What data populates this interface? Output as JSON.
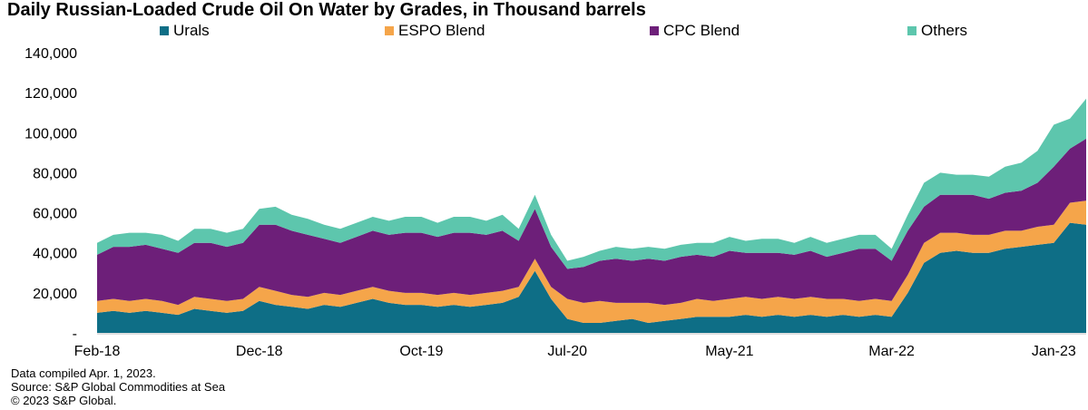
{
  "chart_data": {
    "type": "area",
    "stacked": true,
    "title": "Daily Russian-Loaded Crude Oil On Water by Grades, in Thousand barrels",
    "xlabel": "",
    "ylabel": "",
    "ylim": [
      0,
      140000
    ],
    "y_ticks": [
      "-",
      "20,000",
      "40,000",
      "60,000",
      "80,000",
      "100,000",
      "120,000",
      "140,000"
    ],
    "x_ticks": [
      "Feb-18",
      "Dec-18",
      "Oct-19",
      "Jul-20",
      "May-21",
      "Mar-22",
      "Jan-23"
    ],
    "grid": false,
    "legend_position": "top",
    "x": [
      "2018-02",
      "2018-03",
      "2018-04",
      "2018-05",
      "2018-06",
      "2018-07",
      "2018-08",
      "2018-09",
      "2018-10",
      "2018-11",
      "2018-12",
      "2019-01",
      "2019-02",
      "2019-03",
      "2019-04",
      "2019-05",
      "2019-06",
      "2019-07",
      "2019-08",
      "2019-09",
      "2019-10",
      "2019-11",
      "2019-12",
      "2020-01",
      "2020-02",
      "2020-03",
      "2020-04",
      "2020-05",
      "2020-06",
      "2020-07",
      "2020-08",
      "2020-09",
      "2020-10",
      "2020-11",
      "2020-12",
      "2021-01",
      "2021-02",
      "2021-03",
      "2021-04",
      "2021-05",
      "2021-06",
      "2021-07",
      "2021-08",
      "2021-09",
      "2021-10",
      "2021-11",
      "2021-12",
      "2022-01",
      "2022-02",
      "2022-03",
      "2022-04",
      "2022-05",
      "2022-06",
      "2022-07",
      "2022-08",
      "2022-09",
      "2022-10",
      "2022-11",
      "2022-12",
      "2023-01",
      "2023-02",
      "2023-03"
    ],
    "series": [
      {
        "name": "Urals",
        "color": "#0e6e86",
        "values": [
          10000,
          11000,
          10000,
          11000,
          10000,
          9000,
          12000,
          11000,
          10000,
          11000,
          16000,
          14000,
          13000,
          12000,
          14000,
          13000,
          15000,
          17000,
          15000,
          14000,
          14000,
          13000,
          14000,
          13000,
          14000,
          15000,
          18000,
          31000,
          17000,
          7000,
          5000,
          5000,
          6000,
          7000,
          5000,
          6000,
          7000,
          8000,
          8000,
          8000,
          9000,
          8000,
          9000,
          8000,
          9000,
          8000,
          9000,
          8000,
          9000,
          8000,
          20000,
          35000,
          40000,
          41000,
          40000,
          40000,
          42000,
          43000,
          44000,
          45000,
          55000,
          54000
        ]
      },
      {
        "name": "ESPO Blend",
        "color": "#f5a54a",
        "values": [
          6000,
          6000,
          6000,
          6000,
          6000,
          5000,
          6000,
          6000,
          6000,
          6000,
          7000,
          7000,
          6000,
          6000,
          6000,
          6000,
          6000,
          6000,
          6000,
          6000,
          6000,
          6000,
          6000,
          6000,
          6000,
          6000,
          5000,
          6000,
          6000,
          10000,
          10000,
          11000,
          9000,
          8000,
          10000,
          8000,
          8000,
          9000,
          8000,
          9000,
          9000,
          9000,
          9000,
          9000,
          9000,
          9000,
          8000,
          8000,
          8000,
          8000,
          9000,
          10000,
          10000,
          9000,
          9000,
          9000,
          9000,
          8000,
          9000,
          9000,
          10000,
          12000
        ]
      },
      {
        "name": "CPC Blend",
        "color": "#6d1f79",
        "values": [
          23000,
          26000,
          27000,
          27000,
          26000,
          26000,
          27000,
          28000,
          27000,
          28000,
          31000,
          33000,
          32000,
          31000,
          27000,
          26000,
          27000,
          28000,
          28000,
          30000,
          30000,
          29000,
          30000,
          31000,
          29000,
          30000,
          23000,
          25000,
          20000,
          15000,
          18000,
          20000,
          22000,
          21000,
          22000,
          22000,
          23000,
          22000,
          22000,
          24000,
          22000,
          23000,
          22000,
          22000,
          23000,
          21000,
          23000,
          26000,
          25000,
          20000,
          22000,
          18000,
          19000,
          19000,
          20000,
          18000,
          19000,
          20000,
          22000,
          29000,
          27000,
          31000
        ]
      },
      {
        "name": "Others",
        "color": "#5dc6ad",
        "values": [
          6000,
          6000,
          7000,
          6000,
          7000,
          6000,
          7000,
          7000,
          7000,
          7000,
          8000,
          9000,
          8000,
          8000,
          7000,
          7000,
          7000,
          7000,
          7000,
          8000,
          8000,
          7000,
          8000,
          8000,
          7000,
          8000,
          6000,
          7000,
          6000,
          4000,
          5000,
          5000,
          6000,
          6000,
          6000,
          6000,
          6000,
          6000,
          7000,
          7000,
          6000,
          7000,
          7000,
          6000,
          7000,
          7000,
          7000,
          7000,
          7000,
          6000,
          8000,
          12000,
          11000,
          10000,
          10000,
          11000,
          13000,
          14000,
          16000,
          21000,
          15000,
          20000
        ]
      }
    ]
  },
  "footer": {
    "line1": "Data compiled Apr. 1, 2023.",
    "line2": "Source: S&P Global Commodities at Sea",
    "line3": "© 2023 S&P Global."
  }
}
